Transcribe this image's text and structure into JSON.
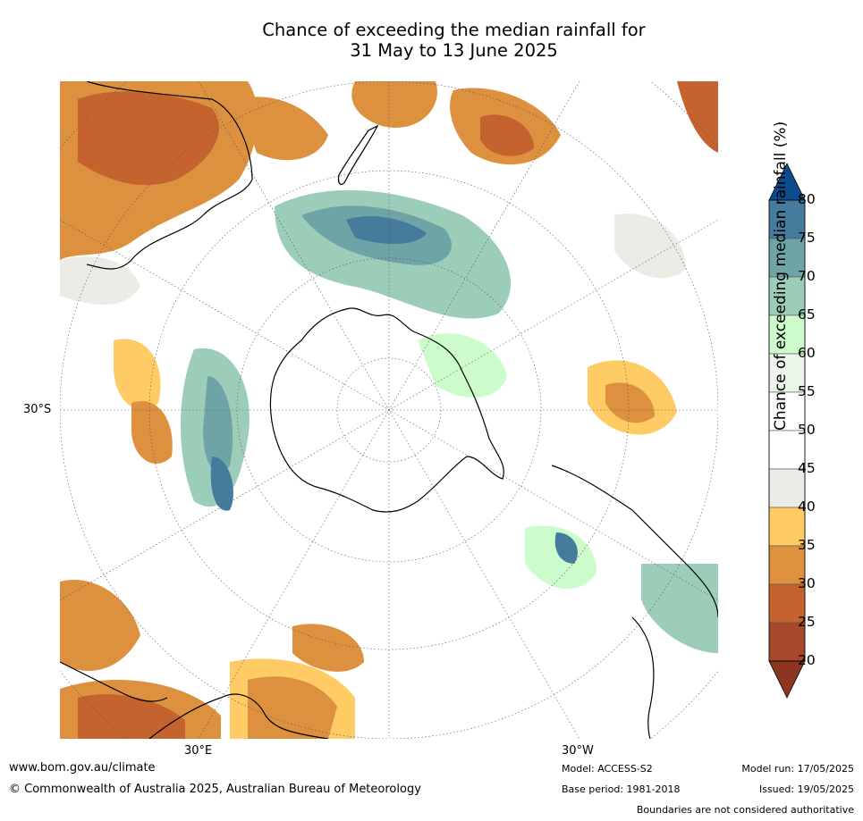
{
  "title_line1": "Chance of exceeding the median rainfall for",
  "title_line2": "31 May to 13 June 2025",
  "axis_labels": {
    "lat": "30°S",
    "lon_east": "30°E",
    "lon_west": "30°W"
  },
  "colorbar": {
    "label": "Chance of exceeding median rainfall (%)",
    "ticks": [
      "80",
      "75",
      "70",
      "65",
      "60",
      "55",
      "50",
      "45",
      "40",
      "35",
      "30",
      "25",
      "20"
    ],
    "colors": [
      "#0d4c8c",
      "#457b9c",
      "#6fa4a6",
      "#9ccdb9",
      "#ccfccc",
      "#ebf5ea",
      "#ffffff",
      "#ffffff",
      "#ecebe6",
      "#fecb65",
      "#dd913f",
      "#c5632e",
      "#a8482a",
      "#8c3520"
    ]
  },
  "footer": {
    "website": "www.bom.gov.au/climate",
    "copyright": "© Commonwealth of Australia 2025, Australian Bureau of Meteorology",
    "model": "Model: ACCESS-S2",
    "base_period": "Base period: 1981-2018",
    "model_run": "Model run: 17/05/2025",
    "issued": "Issued: 19/05/2025",
    "disclaimer": "Boundaries are not considered authoritative"
  }
}
